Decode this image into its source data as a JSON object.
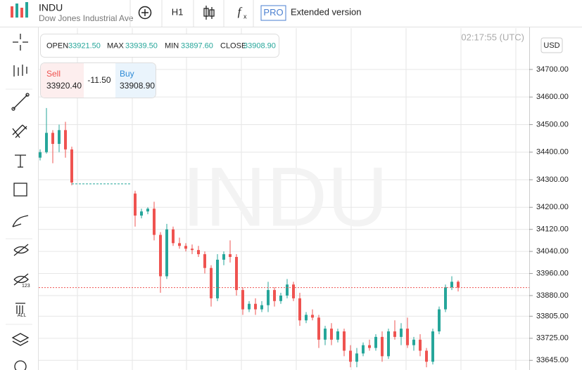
{
  "header": {
    "symbol": "INDU",
    "name": "Dow Jones Industrial Ave",
    "timeframe": "H1",
    "badge": "PRO",
    "mode": "Extended version"
  },
  "ohlc": {
    "open_label": "OPEN",
    "open": "33921.50",
    "max_label": "MAX",
    "max": "33939.50",
    "min_label": "MIN",
    "min": "33897.60",
    "close_label": "CLOSE",
    "close": "33908.90"
  },
  "trade": {
    "sell_label": "Sell",
    "sell": "33920.40",
    "spread": "-11.50",
    "buy_label": "Buy",
    "buy": "33908.90"
  },
  "clock": "02:17:55 (UTC)",
  "currency": "USD",
  "watermark": "INDU",
  "chart": {
    "type": "candlestick",
    "up_color": "#26a69a",
    "down_color": "#ef5350",
    "ylim": [
      33610,
      34850
    ],
    "yticks": [
      {
        "value": 34700,
        "label": "34700.00"
      },
      {
        "value": 34600,
        "label": "34600.00"
      },
      {
        "value": 34500,
        "label": "34500.00"
      },
      {
        "value": 34400,
        "label": "34400.00"
      },
      {
        "value": 34300,
        "label": "34300.00"
      },
      {
        "value": 34200,
        "label": "34200.00"
      },
      {
        "value": 34120,
        "label": "34120.00"
      },
      {
        "value": 34040,
        "label": "34040.00"
      },
      {
        "value": 33960,
        "label": "33960.00"
      },
      {
        "value": 33880,
        "label": "33880.00"
      },
      {
        "value": 33805,
        "label": "33805.00"
      },
      {
        "value": 33725,
        "label": "33725.00"
      },
      {
        "value": 33645,
        "label": "33645.00"
      }
    ],
    "gap_level": 34285,
    "candles": [
      [
        34380,
        34410,
        34370,
        34400
      ],
      [
        34400,
        34560,
        34395,
        34470
      ],
      [
        34470,
        34480,
        34360,
        34430
      ],
      [
        34430,
        34500,
        34400,
        34480
      ],
      [
        34480,
        34510,
        34380,
        34410
      ],
      [
        34410,
        34420,
        34280,
        34290
      ],
      null,
      null,
      null,
      null,
      null,
      null,
      null,
      null,
      null,
      [
        34250,
        34260,
        34130,
        34170
      ],
      [
        34170,
        34195,
        34160,
        34185
      ],
      [
        34185,
        34200,
        34175,
        34195
      ],
      [
        34195,
        34220,
        34080,
        34100
      ],
      [
        34100,
        34110,
        33890,
        33950
      ],
      [
        33950,
        34140,
        33940,
        34120
      ],
      [
        34120,
        34130,
        34060,
        34070
      ],
      [
        34070,
        34090,
        34050,
        34060
      ],
      [
        34060,
        34070,
        34040,
        34050
      ],
      [
        34050,
        34065,
        34030,
        34045
      ],
      [
        34045,
        34060,
        34020,
        34030
      ],
      [
        34030,
        34040,
        33960,
        33980
      ],
      [
        33980,
        33990,
        33840,
        33870
      ],
      [
        33870,
        34030,
        33860,
        34010
      ],
      [
        34010,
        34040,
        33990,
        34030
      ],
      [
        34030,
        34080,
        34000,
        34020
      ],
      [
        34020,
        34030,
        33880,
        33900
      ],
      [
        33900,
        33910,
        33810,
        33830
      ],
      [
        33830,
        33860,
        33820,
        33850
      ],
      [
        33850,
        33870,
        33810,
        33830
      ],
      [
        33830,
        33860,
        33820,
        33845
      ],
      [
        33845,
        33930,
        33820,
        33900
      ],
      [
        33900,
        33910,
        33840,
        33860
      ],
      [
        33860,
        33890,
        33850,
        33880
      ],
      [
        33880,
        33940,
        33870,
        33920
      ],
      [
        33920,
        33930,
        33860,
        33870
      ],
      [
        33870,
        33890,
        33770,
        33790
      ],
      [
        33790,
        33820,
        33780,
        33810
      ],
      [
        33810,
        33830,
        33790,
        33800
      ],
      [
        33800,
        33810,
        33690,
        33720
      ],
      [
        33720,
        33770,
        33700,
        33760
      ],
      [
        33760,
        33780,
        33700,
        33720
      ],
      [
        33720,
        33760,
        33710,
        33750
      ],
      [
        33750,
        33760,
        33660,
        33680
      ],
      [
        33680,
        33700,
        33620,
        33640
      ],
      [
        33640,
        33690,
        33620,
        33670
      ],
      [
        33670,
        33710,
        33660,
        33700
      ],
      [
        33700,
        33720,
        33680,
        33690
      ],
      [
        33690,
        33740,
        33680,
        33730
      ],
      [
        33730,
        33750,
        33640,
        33660
      ],
      [
        33660,
        33760,
        33650,
        33750
      ],
      [
        33750,
        33790,
        33720,
        33730
      ],
      [
        33730,
        33780,
        33700,
        33760
      ],
      [
        33760,
        33800,
        33690,
        33700
      ],
      [
        33700,
        33730,
        33680,
        33720
      ],
      [
        33720,
        33740,
        33660,
        33680
      ],
      [
        33680,
        33690,
        33620,
        33640
      ],
      [
        33640,
        33760,
        33630,
        33750
      ],
      [
        33750,
        33840,
        33740,
        33830
      ],
      [
        33830,
        33920,
        33820,
        33910
      ],
      [
        33910,
        33950,
        33900,
        33930
      ],
      [
        33930,
        33935,
        33895,
        33908.9
      ]
    ]
  }
}
